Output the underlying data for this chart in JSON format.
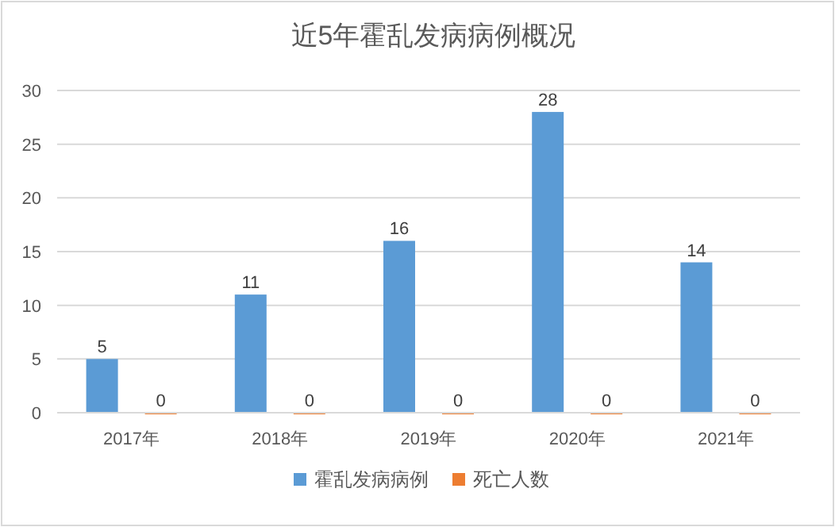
{
  "chart_data": {
    "type": "bar",
    "title": "近5年霍乱发病病例概况",
    "categories": [
      "2017年",
      "2018年",
      "2019年",
      "2020年",
      "2021年"
    ],
    "series": [
      {
        "name": "霍乱发病病例",
        "color": "#5b9bd5",
        "values": [
          5,
          11,
          16,
          28,
          14
        ]
      },
      {
        "name": "死亡人数",
        "color": "#ed7d31",
        "values": [
          0,
          0,
          0,
          0,
          0
        ]
      }
    ],
    "ylim": [
      0,
      30
    ],
    "yticks": [
      0,
      5,
      10,
      15,
      20,
      25,
      30
    ],
    "grid": "y",
    "legend": "bottom",
    "data_labels": true
  }
}
